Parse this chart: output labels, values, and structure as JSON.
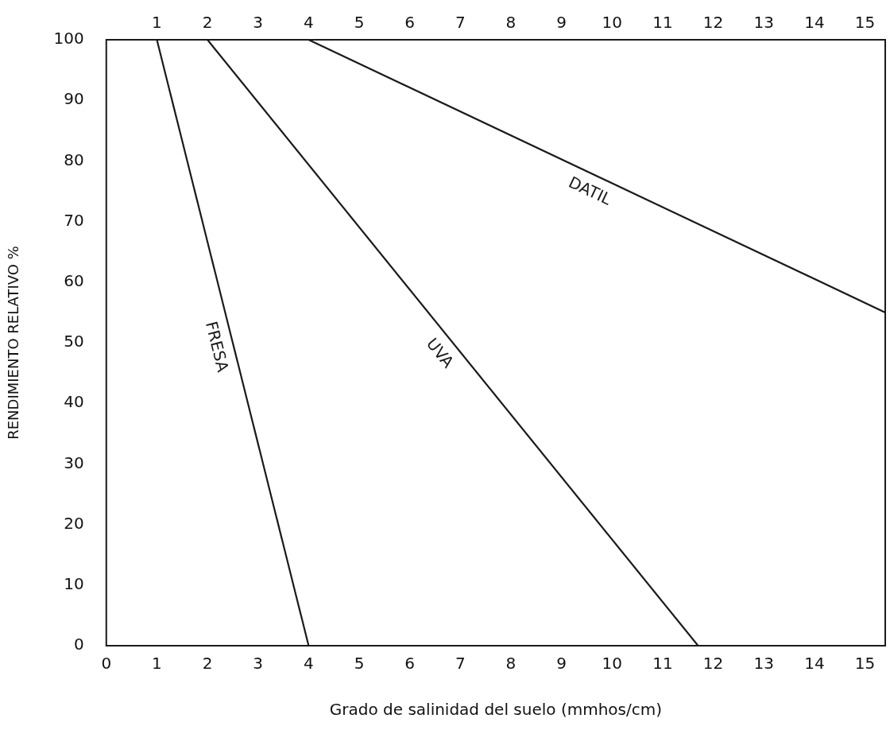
{
  "chart_data": {
    "type": "line",
    "xlabel": "Grado de salinidad del suelo (mmhos/cm)",
    "ylabel": "RENDIMIENTO RELATIVO %",
    "xlim": [
      0,
      15.4
    ],
    "xticks": [
      0,
      1,
      2,
      3,
      4,
      5,
      6,
      7,
      8,
      9,
      10,
      11,
      12,
      13,
      14,
      15
    ],
    "x2lim": [
      0,
      15.4
    ],
    "x2ticks": [
      1,
      2,
      3,
      4,
      5,
      6,
      7,
      8,
      9,
      10,
      11,
      12,
      13,
      14,
      15
    ],
    "ylim": [
      0,
      100
    ],
    "yticks": [
      0,
      10,
      20,
      30,
      40,
      50,
      60,
      70,
      80,
      90,
      100
    ],
    "grid": false,
    "legend": false,
    "marker": "none",
    "line_style": "solid",
    "series": [
      {
        "name": "FRESA",
        "color": "#1a1a1a",
        "x": [
          1,
          4
        ],
        "values": [
          100,
          0
        ]
      },
      {
        "name": "UVA",
        "color": "#1a1a1a",
        "x": [
          2,
          11.7
        ],
        "values": [
          100,
          0
        ]
      },
      {
        "name": "DATIL",
        "color": "#1a1a1a",
        "x": [
          4,
          15.4
        ],
        "values": [
          100,
          55
        ]
      }
    ]
  }
}
